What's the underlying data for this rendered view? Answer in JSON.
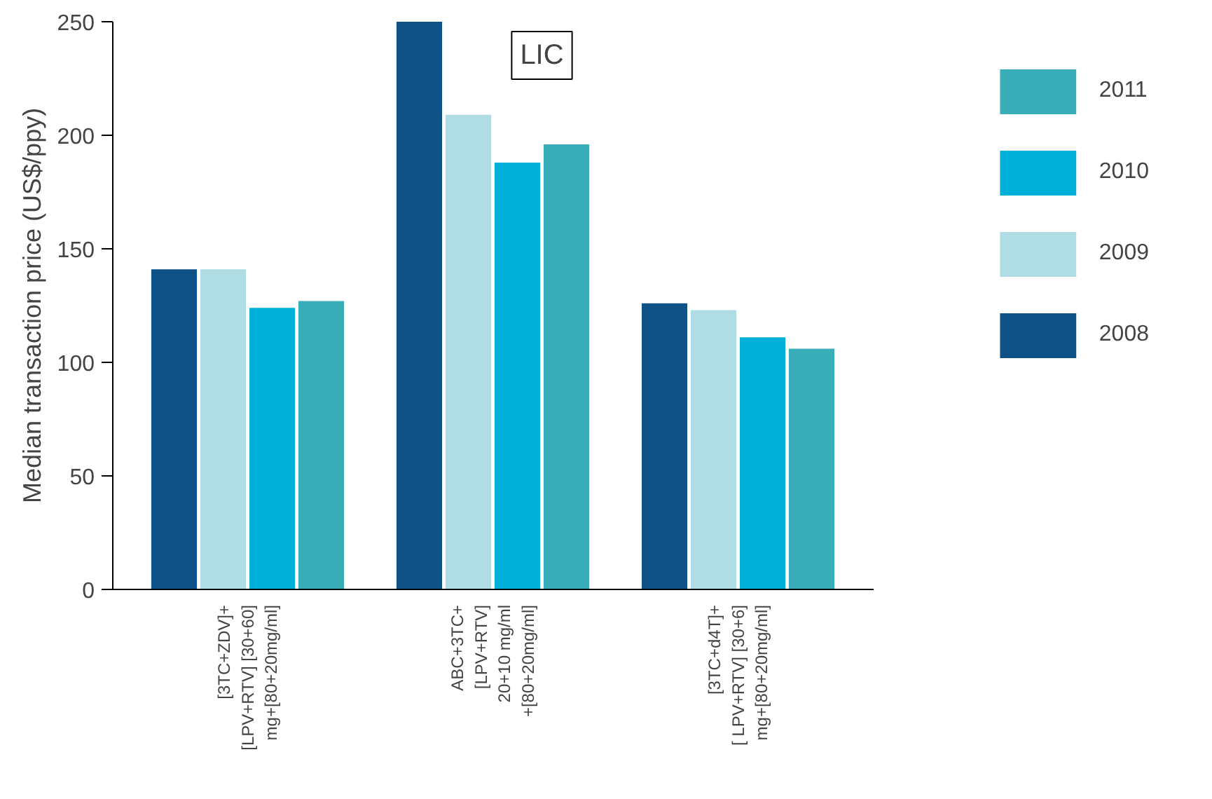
{
  "chart_data": {
    "type": "bar",
    "title": "LIC",
    "ylabel": "Median transaction price (US$/ppy)",
    "categories": [
      "[3TC+ZDV]+\n[LPV+RTV] [30+60]\nmg+[80+20mg/ml]",
      "ABC+3TC+\n[LPV+RTV]\n20+10 mg/ml\n+[80+20mg/ml]",
      "[3TC+d4T]+\n[ LPV+RTV] [30+6]\nmg+[80+20mg/ml]"
    ],
    "series": [
      {
        "name": "2008",
        "color": "#0e5287",
        "values": [
          141,
          250,
          126
        ]
      },
      {
        "name": "2009",
        "color": "#afdde3",
        "values": [
          141,
          209,
          123
        ]
      },
      {
        "name": "2010",
        "color": "#00b0d8",
        "values": [
          124,
          188,
          111
        ]
      },
      {
        "name": "2011",
        "color": "#3aaeb8",
        "values": [
          127,
          196,
          106
        ]
      }
    ],
    "ylim": [
      0,
      250
    ],
    "yticks": [
      0,
      50,
      100,
      150,
      200,
      250
    ],
    "grid": false,
    "legend": "right"
  }
}
